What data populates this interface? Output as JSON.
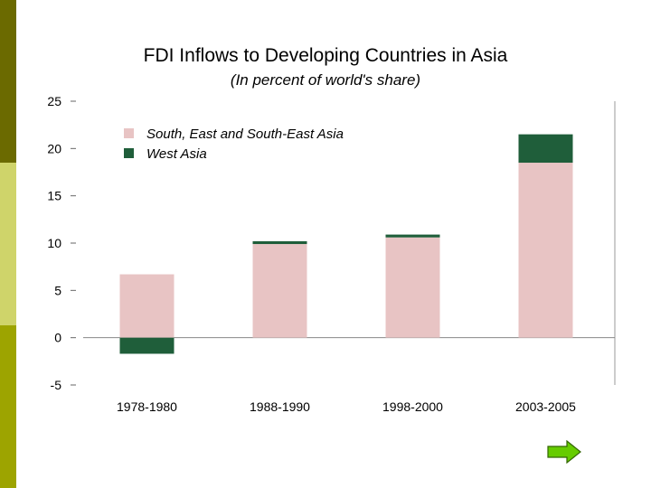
{
  "chart_data": {
    "type": "bar",
    "stacked": true,
    "title": "FDI Inflows to Developing Countries in Asia",
    "subtitle": "(In percent of world's share)",
    "categories": [
      "1978-1980",
      "1988-1990",
      "1998-2000",
      "2003-2005"
    ],
    "series": [
      {
        "name": "South, East and South-East Asia",
        "values": [
          6.7,
          9.9,
          10.6,
          18.5
        ],
        "color": "#e8c4c4"
      },
      {
        "name": "West Asia",
        "values": [
          -1.7,
          0.3,
          0.3,
          3.0
        ],
        "color": "#1f5e3a"
      }
    ],
    "ylim": [
      -5,
      25
    ],
    "yticks": [
      25,
      20,
      15,
      10,
      5,
      0,
      -5
    ],
    "xlabel": "",
    "ylabel": "",
    "legend": "top-left inside"
  },
  "colors": {
    "sidebar_top": "#6b6a00",
    "sidebar_mid": "#cfd46a",
    "sidebar_bottom": "#9da400",
    "arrow": "#66cc00"
  },
  "nav": {
    "next_icon": "right-arrow-icon"
  }
}
